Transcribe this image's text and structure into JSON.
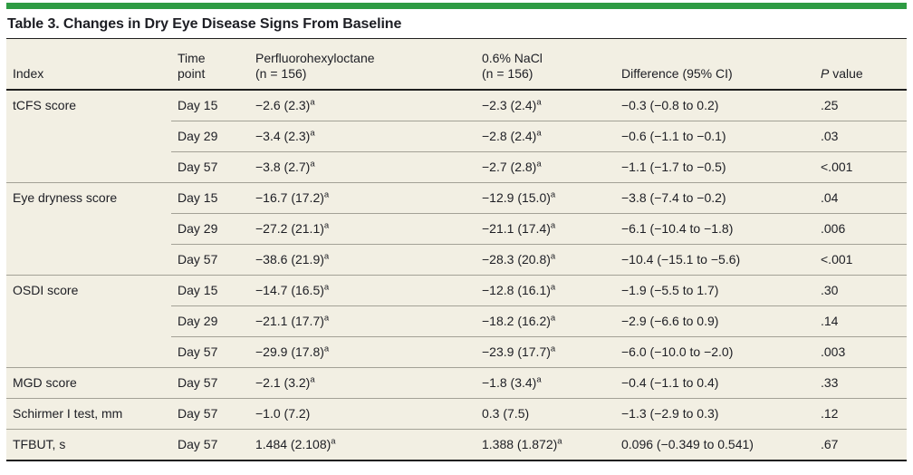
{
  "title": "Table 3. Changes in Dry Eye Disease Signs From Baseline",
  "colors": {
    "accent_green": "#2e9b43",
    "table_background": "#f2efe3",
    "dark_rule": "#1f1f1f",
    "row_rule": "#a3a196",
    "text": "#1d1e24"
  },
  "table": {
    "header": {
      "index": "Index",
      "time_line1": "Time",
      "time_line2": "point",
      "drug_line1": "Perfluorohexyloctane",
      "drug_line2": "(n = 156)",
      "nacl_line1": "0.6% NaCl",
      "nacl_line2": "(n = 156)",
      "difference": "Difference (95% CI)",
      "p_italic": "P",
      "p_rest": " value"
    },
    "groups": [
      {
        "index": "tCFS score",
        "rows": [
          {
            "time": "Day 15",
            "drug": "−2.6 (2.3)",
            "drug_sup": "a",
            "nacl": "−2.3 (2.4)",
            "nacl_sup": "a",
            "diff": "−0.3 (−0.8 to 0.2)",
            "p": ".25"
          },
          {
            "time": "Day 29",
            "drug": "−3.4 (2.3)",
            "drug_sup": "a",
            "nacl": "−2.8 (2.4)",
            "nacl_sup": "a",
            "diff": "−0.6 (−1.1 to −0.1)",
            "p": ".03"
          },
          {
            "time": "Day 57",
            "drug": "−3.8 (2.7)",
            "drug_sup": "a",
            "nacl": "−2.7 (2.8)",
            "nacl_sup": "a",
            "diff": "−1.1 (−1.7 to −0.5)",
            "p": "<.001"
          }
        ]
      },
      {
        "index": "Eye dryness score",
        "rows": [
          {
            "time": "Day 15",
            "drug": "−16.7 (17.2)",
            "drug_sup": "a",
            "nacl": "−12.9 (15.0)",
            "nacl_sup": "a",
            "diff": "−3.8 (−7.4 to −0.2)",
            "p": ".04"
          },
          {
            "time": "Day 29",
            "drug": "−27.2 (21.1)",
            "drug_sup": "a",
            "nacl": "−21.1 (17.4)",
            "nacl_sup": "a",
            "diff": "−6.1 (−10.4 to −1.8)",
            "p": ".006"
          },
          {
            "time": "Day 57",
            "drug": "−38.6 (21.9)",
            "drug_sup": "a",
            "nacl": "−28.3 (20.8)",
            "nacl_sup": "a",
            "diff": "−10.4 (−15.1 to −5.6)",
            "p": "<.001"
          }
        ]
      },
      {
        "index": "OSDI score",
        "rows": [
          {
            "time": "Day 15",
            "drug": "−14.7 (16.5)",
            "drug_sup": "a",
            "nacl": "−12.8 (16.1)",
            "nacl_sup": "a",
            "diff": "−1.9 (−5.5 to 1.7)",
            "p": ".30"
          },
          {
            "time": "Day 29",
            "drug": "−21.1 (17.7)",
            "drug_sup": "a",
            "nacl": "−18.2 (16.2)",
            "nacl_sup": "a",
            "diff": "−2.9 (−6.6 to 0.9)",
            "p": ".14"
          },
          {
            "time": "Day 57",
            "drug": "−29.9 (17.8)",
            "drug_sup": "a",
            "nacl": "−23.9 (17.7)",
            "nacl_sup": "a",
            "diff": "−6.0 (−10.0 to −2.0)",
            "p": ".003"
          }
        ]
      },
      {
        "index": "MGD score",
        "rows": [
          {
            "time": "Day 57",
            "drug": "−2.1 (3.2)",
            "drug_sup": "a",
            "nacl": "−1.8 (3.4)",
            "nacl_sup": "a",
            "diff": "−0.4 (−1.1 to 0.4)",
            "p": ".33"
          }
        ]
      },
      {
        "index": "Schirmer I test, mm",
        "rows": [
          {
            "time": "Day 57",
            "drug": "−1.0 (7.2)",
            "drug_sup": "",
            "nacl": "0.3 (7.5)",
            "nacl_sup": "",
            "diff": "−1.3 (−2.9 to 0.3)",
            "p": ".12"
          }
        ]
      },
      {
        "index": "TFBUT, s",
        "rows": [
          {
            "time": "Day 57",
            "drug": "1.484 (2.108)",
            "drug_sup": "a",
            "nacl": "1.388 (1.872)",
            "nacl_sup": "a",
            "diff": "0.096 (−0.349 to 0.541)",
            "p": ".67"
          }
        ]
      }
    ]
  }
}
